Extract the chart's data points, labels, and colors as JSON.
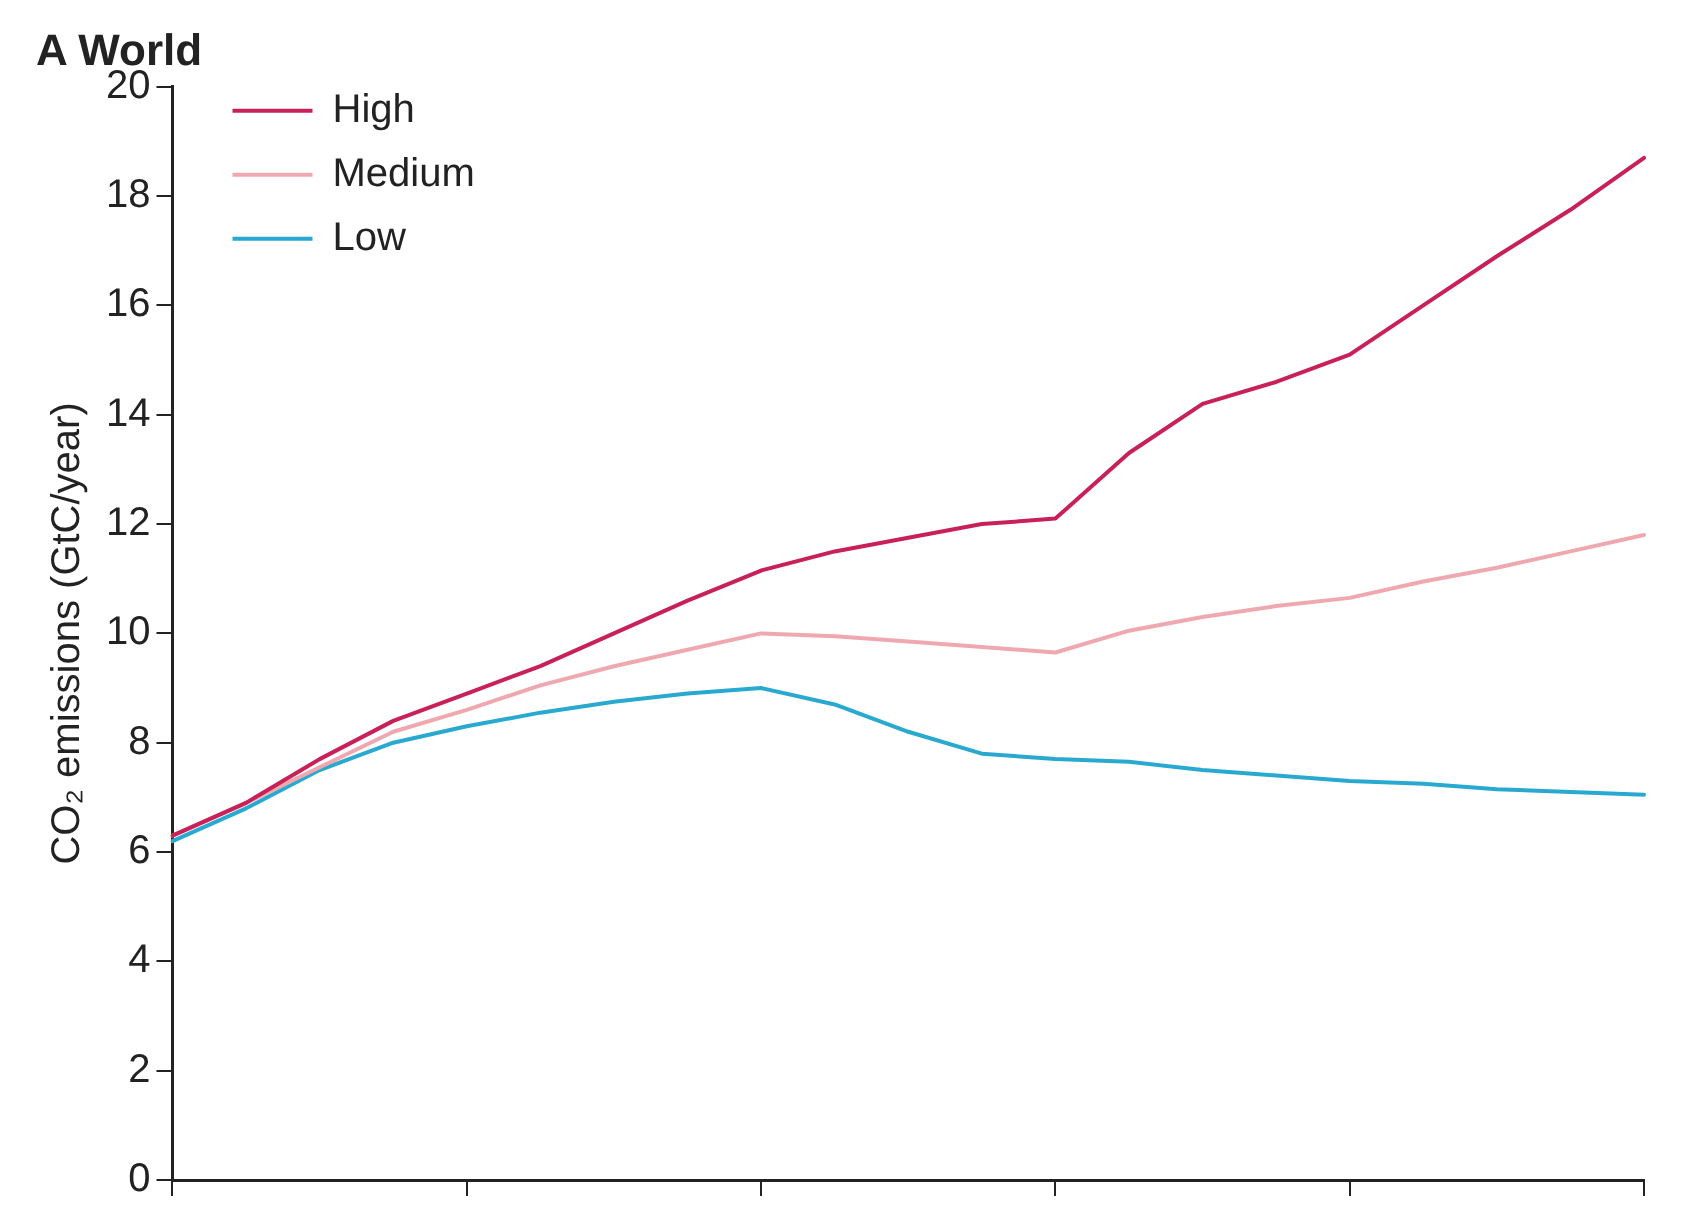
{
  "chart_data": {
    "type": "line",
    "title": "A World",
    "ylabel": "CO₂ emissions (GtC/year)",
    "categories": [
      null,
      null,
      null,
      null,
      null,
      null,
      null,
      null,
      null,
      null,
      null,
      null,
      null,
      null,
      null,
      null,
      null,
      null,
      null,
      null,
      null
    ],
    "series": [
      {
        "name": "High",
        "color": "#c8215a",
        "values": [
          6.3,
          6.9,
          7.7,
          8.4,
          8.9,
          9.4,
          10.0,
          10.6,
          11.15,
          11.5,
          11.75,
          12.0,
          12.1,
          13.3,
          14.2,
          14.6,
          15.1,
          16.0,
          16.9,
          17.75,
          18.7
        ]
      },
      {
        "name": "Medium",
        "color": "#f0a8b0",
        "values": [
          6.3,
          6.9,
          7.55,
          8.2,
          8.6,
          9.05,
          9.4,
          9.7,
          10.0,
          9.95,
          9.85,
          9.75,
          9.65,
          10.05,
          10.3,
          10.5,
          10.65,
          10.95,
          11.2,
          11.5,
          11.8
        ]
      },
      {
        "name": "Low",
        "color": "#2aa9d0",
        "values": [
          6.2,
          6.8,
          7.5,
          8.0,
          8.3,
          8.55,
          8.75,
          8.9,
          9.0,
          8.7,
          8.2,
          7.8,
          7.7,
          7.65,
          7.5,
          7.4,
          7.3,
          7.25,
          7.15,
          7.1,
          7.05
        ]
      }
    ],
    "ylim": [
      0,
      20
    ],
    "yticks": [
      0,
      2,
      4,
      6,
      8,
      10,
      12,
      14,
      16,
      18,
      20
    ],
    "grid": false,
    "legend": "top left",
    "tick_labels": "y",
    "marker": "none",
    "line_style": "solid"
  }
}
